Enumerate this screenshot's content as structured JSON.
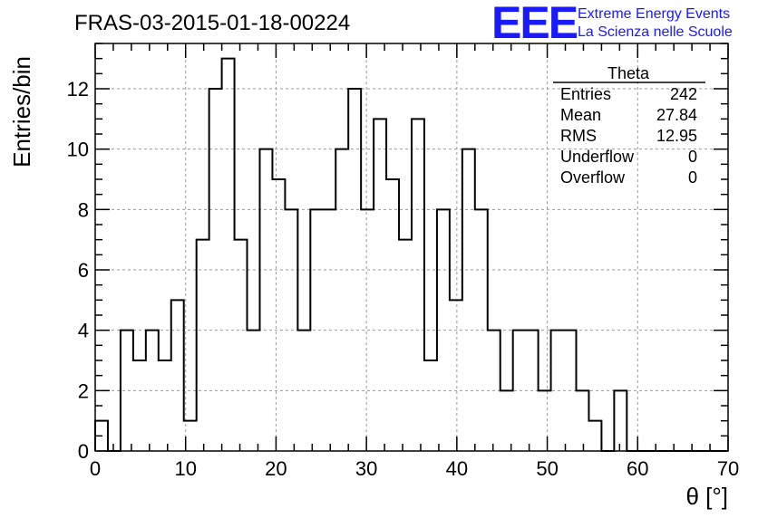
{
  "header": {
    "title": "FRAS-03-2015-01-18-00224",
    "brand_logo": "EEE",
    "brand_line1": "Extreme Energy Events",
    "brand_line2": "La Scienza nelle Scuole"
  },
  "stats_box": {
    "name": "Theta",
    "rows": [
      {
        "label": "Entries",
        "value": "242"
      },
      {
        "label": "Mean",
        "value": "27.84"
      },
      {
        "label": "RMS",
        "value": "12.95"
      },
      {
        "label": "Underflow",
        "value": "0"
      },
      {
        "label": "Overflow",
        "value": "0"
      }
    ]
  },
  "chart_data": {
    "type": "bar",
    "style": "step-histogram",
    "title": "FRAS-03-2015-01-18-00224",
    "xlabel": "θ [°]",
    "ylabel": "Entries/bin",
    "xlim": [
      0,
      70
    ],
    "ylim": [
      0,
      13.5
    ],
    "bin_width": 1.4,
    "bin_edges_start": 0,
    "x_ticks": [
      0,
      10,
      20,
      30,
      40,
      50,
      60,
      70
    ],
    "x_tick_labels": [
      "0",
      "10",
      "20",
      "30",
      "40",
      "50",
      "60",
      "70"
    ],
    "y_ticks": [
      0,
      2,
      4,
      6,
      8,
      10,
      12
    ],
    "y_tick_labels": [
      "0",
      "2",
      "4",
      "6",
      "8",
      "10",
      "12"
    ],
    "grid": true,
    "values": [
      1,
      0,
      4,
      3,
      4,
      3,
      5,
      1,
      7,
      12,
      13,
      7,
      4,
      10,
      9,
      8,
      4,
      8,
      8,
      10,
      12,
      8,
      11,
      9,
      7,
      11,
      3,
      8,
      5,
      10,
      8,
      4,
      2,
      4,
      4,
      2,
      4,
      4,
      2,
      1,
      0,
      2,
      0,
      0,
      0,
      0,
      0,
      0,
      0,
      0
    ],
    "line_color": "#000000"
  }
}
